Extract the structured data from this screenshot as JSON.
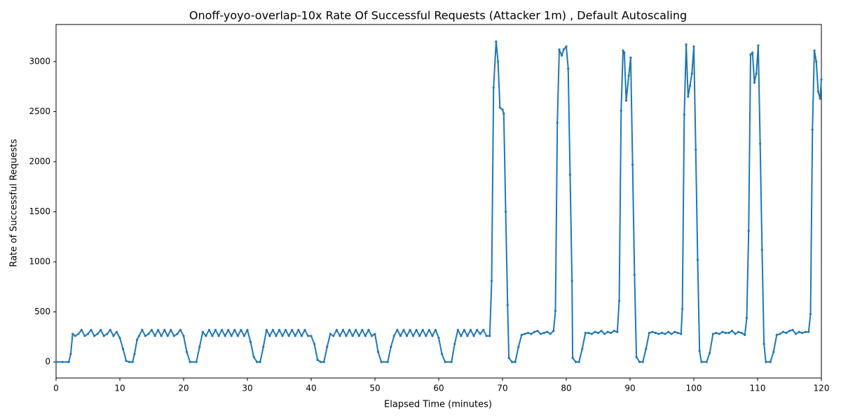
{
  "chart_data": {
    "type": "line",
    "title": "Onoff-yoyo-overlap-10x Rate Of Successful Requests (Attacker 1m) , Default Autoscaling",
    "x_label": "Elapsed Time (minutes)",
    "y_label": "Rate of Successful Requests",
    "xlim": [
      0,
      120
    ],
    "xticks": [
      0,
      10,
      20,
      30,
      40,
      50,
      60,
      70,
      80,
      90,
      100,
      110,
      120
    ],
    "ylim": [
      -160,
      3370
    ],
    "yticks": [
      0,
      500,
      1000,
      1500,
      2000,
      2500,
      3000
    ],
    "grid": false,
    "series": [
      {
        "name": "Rate of Successful Requests",
        "color": "#1f77b4",
        "x": [
          0,
          1,
          2,
          2.3,
          2.6,
          3,
          3.5,
          4,
          4.5,
          5,
          5.5,
          6,
          6.5,
          7,
          7.5,
          8,
          8.5,
          9,
          9.5,
          10,
          10.5,
          11,
          11.5,
          12,
          12.3,
          12.7,
          13,
          13.5,
          14,
          14.5,
          15,
          15.5,
          16,
          16.5,
          17,
          17.5,
          18,
          18.5,
          19,
          19.5,
          20,
          20.5,
          21,
          22,
          22.5,
          23,
          23.5,
          24,
          24.5,
          25,
          25.5,
          26,
          26.5,
          27,
          27.5,
          28,
          28.5,
          29,
          29.5,
          30,
          30.5,
          31,
          31.5,
          32,
          32.5,
          33,
          33.5,
          34,
          34.5,
          35,
          35.5,
          36,
          36.5,
          37,
          37.5,
          38,
          38.5,
          39,
          39.5,
          40,
          40.5,
          41,
          41.5,
          42,
          42.5,
          43,
          43.5,
          44,
          44.5,
          45,
          45.5,
          46,
          46.5,
          47,
          47.5,
          48,
          48.5,
          49,
          49.5,
          50,
          50.5,
          51,
          52,
          52.5,
          53,
          53.5,
          54,
          54.5,
          55,
          55.5,
          56,
          56.5,
          57,
          57.5,
          58,
          58.5,
          59,
          59.5,
          60,
          60.5,
          61,
          62,
          62.5,
          63,
          63.5,
          64,
          64.5,
          65,
          65.5,
          66,
          66.5,
          67,
          67.5,
          68,
          68.3,
          68.6,
          69,
          69.3,
          69.6,
          70,
          70.2,
          70.5,
          70.8,
          71,
          71.5,
          72,
          72.5,
          73,
          73.5,
          74,
          74.5,
          75,
          75.5,
          76,
          76.5,
          77,
          77.5,
          78,
          78.3,
          78.6,
          78.9,
          79.3,
          79.6,
          80,
          80.3,
          80.6,
          80.9,
          81,
          81.5,
          82,
          82.5,
          83,
          83.5,
          84,
          84.5,
          85,
          85.5,
          86,
          86.5,
          87,
          87.5,
          88,
          88.3,
          88.6,
          88.9,
          89.1,
          89.4,
          89.8,
          90.1,
          90.4,
          90.7,
          91,
          91.5,
          92,
          92.5,
          93,
          93.5,
          94,
          94.5,
          95,
          95.5,
          96,
          96.5,
          97,
          97.5,
          98,
          98.2,
          98.5,
          98.8,
          99.1,
          99.4,
          99.7,
          100,
          100.3,
          100.6,
          100.9,
          101.2,
          102,
          102.5,
          103,
          103.5,
          104,
          104.5,
          105,
          105.5,
          106,
          106.5,
          107,
          107.5,
          108,
          108.3,
          108.6,
          108.9,
          109.2,
          109.5,
          109.8,
          110.1,
          110.4,
          110.7,
          111,
          111.3,
          112,
          112.5,
          113,
          113.5,
          114,
          114.5,
          115,
          115.5,
          116,
          116.5,
          117,
          117.5,
          118,
          118.3,
          118.6,
          118.9,
          119.2,
          119.5,
          119.8,
          120
        ],
        "values": [
          0,
          0,
          0,
          80,
          280,
          260,
          280,
          320,
          260,
          280,
          320,
          260,
          280,
          320,
          260,
          280,
          320,
          260,
          300,
          240,
          130,
          10,
          0,
          0,
          80,
          220,
          260,
          320,
          260,
          280,
          320,
          260,
          320,
          260,
          320,
          260,
          320,
          260,
          280,
          320,
          260,
          100,
          0,
          0,
          150,
          300,
          260,
          320,
          260,
          320,
          260,
          320,
          260,
          320,
          260,
          320,
          260,
          320,
          260,
          320,
          200,
          50,
          0,
          0,
          150,
          320,
          260,
          320,
          260,
          320,
          260,
          320,
          260,
          320,
          260,
          320,
          260,
          320,
          260,
          260,
          180,
          20,
          0,
          0,
          150,
          280,
          260,
          320,
          260,
          320,
          260,
          320,
          260,
          320,
          260,
          320,
          260,
          320,
          260,
          280,
          100,
          0,
          0,
          150,
          260,
          320,
          260,
          320,
          260,
          320,
          260,
          320,
          260,
          320,
          260,
          320,
          260,
          320,
          240,
          80,
          0,
          0,
          180,
          320,
          260,
          320,
          260,
          320,
          260,
          320,
          280,
          320,
          260,
          260,
          810,
          2740,
          3200,
          3000,
          2540,
          2520,
          2480,
          1500,
          570,
          40,
          0,
          0,
          150,
          270,
          280,
          290,
          280,
          300,
          310,
          280,
          290,
          300,
          280,
          310,
          510,
          2390,
          3120,
          3060,
          3120,
          3150,
          2930,
          1870,
          810,
          40,
          0,
          0,
          130,
          290,
          290,
          280,
          300,
          290,
          310,
          280,
          300,
          290,
          310,
          300,
          610,
          2510,
          3110,
          3090,
          2610,
          2860,
          3040,
          1970,
          870,
          50,
          0,
          0,
          130,
          290,
          300,
          290,
          280,
          290,
          280,
          300,
          280,
          300,
          290,
          280,
          530,
          2470,
          3170,
          2650,
          2760,
          2880,
          3150,
          2120,
          1020,
          110,
          0,
          0,
          90,
          280,
          290,
          280,
          300,
          290,
          290,
          310,
          280,
          300,
          290,
          270,
          440,
          1310,
          3070,
          3090,
          2790,
          2880,
          3160,
          2180,
          1120,
          180,
          0,
          0,
          100,
          270,
          280,
          300,
          290,
          310,
          320,
          280,
          300,
          290,
          300,
          300,
          480,
          2320,
          3110,
          3000,
          2700,
          2630,
          2820
        ]
      }
    ]
  }
}
